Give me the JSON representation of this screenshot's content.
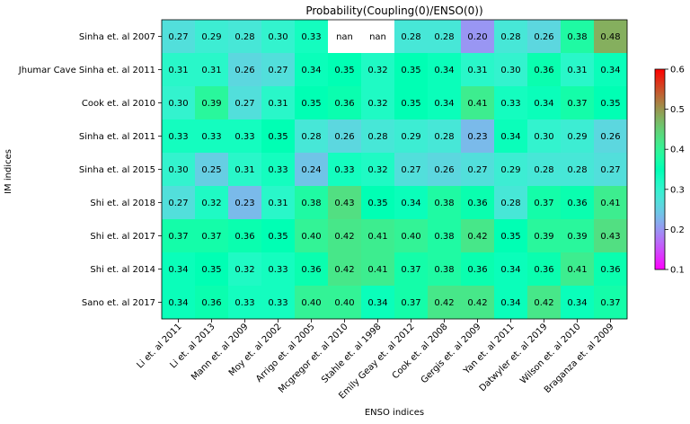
{
  "chart_data": {
    "type": "heatmap",
    "title": "Probability(Coupling(0)/ENSO(0))",
    "xlabel": "ENSO indices",
    "ylabel": "IM indices",
    "x_categories": [
      "Li et. al 2011",
      "Li et. al 2013",
      "Mann et. al 2009",
      "Moy et. al 2002",
      "Arrigo et. al 2005",
      "Mcgregor et. al 2010",
      "Stahle et. al 1998",
      "Emily Geay et. al 2012",
      "Cook et. al 2008",
      "Gergis et. al 2009",
      "Yan et. al 2011",
      "Datwyler et. al 2019",
      "Wilson et. al 2010",
      "Braganza et. al 2009"
    ],
    "y_categories": [
      "Sinha et. al 2007",
      "Jhumar Cave Sinha et. al 2011",
      "Cook et. al 2010",
      "Sinha et. al 2011",
      "Sinha et. al 2015",
      "Shi et. al 2018",
      "Shi et. al 2017",
      "Shi et. al 2014",
      "Sano et. al 2017"
    ],
    "values": [
      [
        0.27,
        0.29,
        0.28,
        0.3,
        0.33,
        null,
        null,
        0.28,
        0.28,
        0.2,
        0.28,
        0.26,
        0.38,
        0.48
      ],
      [
        0.31,
        0.31,
        0.26,
        0.27,
        0.34,
        0.35,
        0.32,
        0.35,
        0.34,
        0.31,
        0.3,
        0.36,
        0.31,
        0.34
      ],
      [
        0.3,
        0.39,
        0.27,
        0.31,
        0.35,
        0.36,
        0.32,
        0.35,
        0.34,
        0.41,
        0.33,
        0.34,
        0.37,
        0.35
      ],
      [
        0.33,
        0.33,
        0.33,
        0.35,
        0.28,
        0.26,
        0.28,
        0.29,
        0.28,
        0.23,
        0.34,
        0.3,
        0.29,
        0.26
      ],
      [
        0.3,
        0.25,
        0.31,
        0.33,
        0.24,
        0.33,
        0.32,
        0.27,
        0.26,
        0.27,
        0.29,
        0.28,
        0.28,
        0.27
      ],
      [
        0.27,
        0.32,
        0.23,
        0.31,
        0.38,
        0.43,
        0.35,
        0.34,
        0.38,
        0.36,
        0.28,
        0.37,
        0.36,
        0.41
      ],
      [
        0.37,
        0.37,
        0.36,
        0.35,
        0.4,
        0.42,
        0.41,
        0.4,
        0.38,
        0.42,
        0.35,
        0.39,
        0.39,
        0.43
      ],
      [
        0.34,
        0.35,
        0.32,
        0.33,
        0.36,
        0.42,
        0.41,
        0.37,
        0.38,
        0.36,
        0.34,
        0.36,
        0.41,
        0.36
      ],
      [
        0.34,
        0.36,
        0.33,
        0.33,
        0.4,
        0.4,
        0.34,
        0.37,
        0.42,
        0.42,
        0.34,
        0.42,
        0.34,
        0.37
      ]
    ],
    "missing_label": "nan",
    "colormap": "rainbow",
    "colorbar_range": [
      0.1,
      0.6
    ],
    "colorbar_ticks": [
      0.1,
      0.2,
      0.3,
      0.4,
      0.5,
      0.6
    ],
    "colorbar_tick_labels": [
      "0.1",
      "0.2",
      "0.3",
      "0.4",
      "0.5",
      "0.6"
    ]
  }
}
